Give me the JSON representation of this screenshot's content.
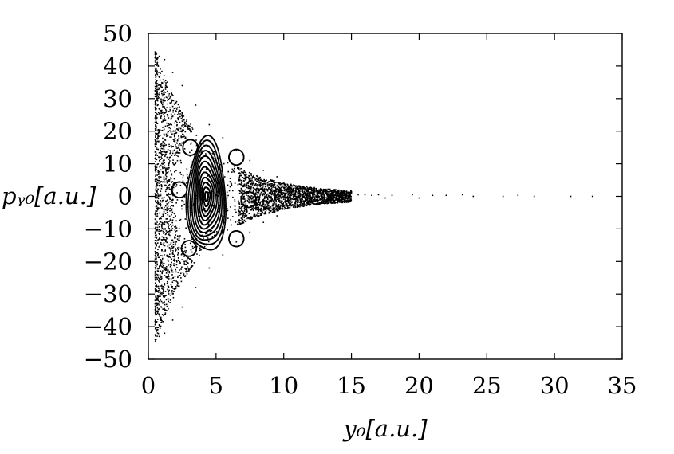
{
  "chart_data": {
    "type": "scatter",
    "title": "",
    "xlabel": "y₀[a.u.]",
    "ylabel": "pᵧ₀[a.u.]",
    "xlim": [
      0,
      35
    ],
    "ylim": [
      -50,
      50
    ],
    "x_ticks": [
      "0",
      "5",
      "10",
      "15",
      "20",
      "25",
      "30",
      "35"
    ],
    "y_ticks": [
      "50",
      "40",
      "30",
      "20",
      "10",
      "0",
      "−10",
      "−20",
      "−30",
      "−40",
      "−50"
    ],
    "grid": false,
    "legend": "none",
    "marker_color": "#000000",
    "center": [
      4.3,
      0
    ],
    "series": [
      {
        "values": [
          [
            0.8,
            43
          ],
          [
            1.2,
            42
          ],
          [
            1.8,
            38
          ],
          [
            2.5,
            34
          ],
          [
            3.5,
            28
          ],
          [
            4.5,
            22
          ],
          [
            5.5,
            18
          ],
          [
            6.5,
            14
          ],
          [
            7.5,
            11
          ],
          [
            8.5,
            8
          ],
          [
            9.5,
            6
          ],
          [
            0.8,
            -43
          ],
          [
            1.2,
            -42
          ],
          [
            1.8,
            -38
          ],
          [
            2.5,
            -34
          ],
          [
            3.5,
            -28
          ],
          [
            4.5,
            -22
          ],
          [
            5.5,
            -18
          ],
          [
            6.5,
            -14
          ],
          [
            7.5,
            -11
          ],
          [
            8.5,
            -8
          ],
          [
            9.5,
            -6
          ],
          [
            11,
            3
          ],
          [
            11,
            -3
          ],
          [
            12,
            2
          ],
          [
            12,
            -2
          ],
          [
            13,
            2
          ],
          [
            13,
            -1
          ],
          [
            14,
            1
          ],
          [
            14,
            -1
          ],
          [
            15,
            1
          ],
          [
            15.5,
            0.5
          ],
          [
            16,
            0.5
          ],
          [
            16.5,
            0.3
          ],
          [
            17,
            0.5
          ],
          [
            17.5,
            -0.5
          ],
          [
            18,
            0.3
          ],
          [
            19.5,
            0.5
          ],
          [
            20,
            -0.5
          ],
          [
            21,
            0.3
          ],
          [
            22,
            0.3
          ],
          [
            23.2,
            0.5
          ],
          [
            24,
            0
          ],
          [
            26.2,
            0
          ],
          [
            27.3,
            0.3
          ],
          [
            28.5,
            0
          ],
          [
            31.2,
            0
          ],
          [
            32.8,
            0
          ]
        ]
      }
    ]
  }
}
